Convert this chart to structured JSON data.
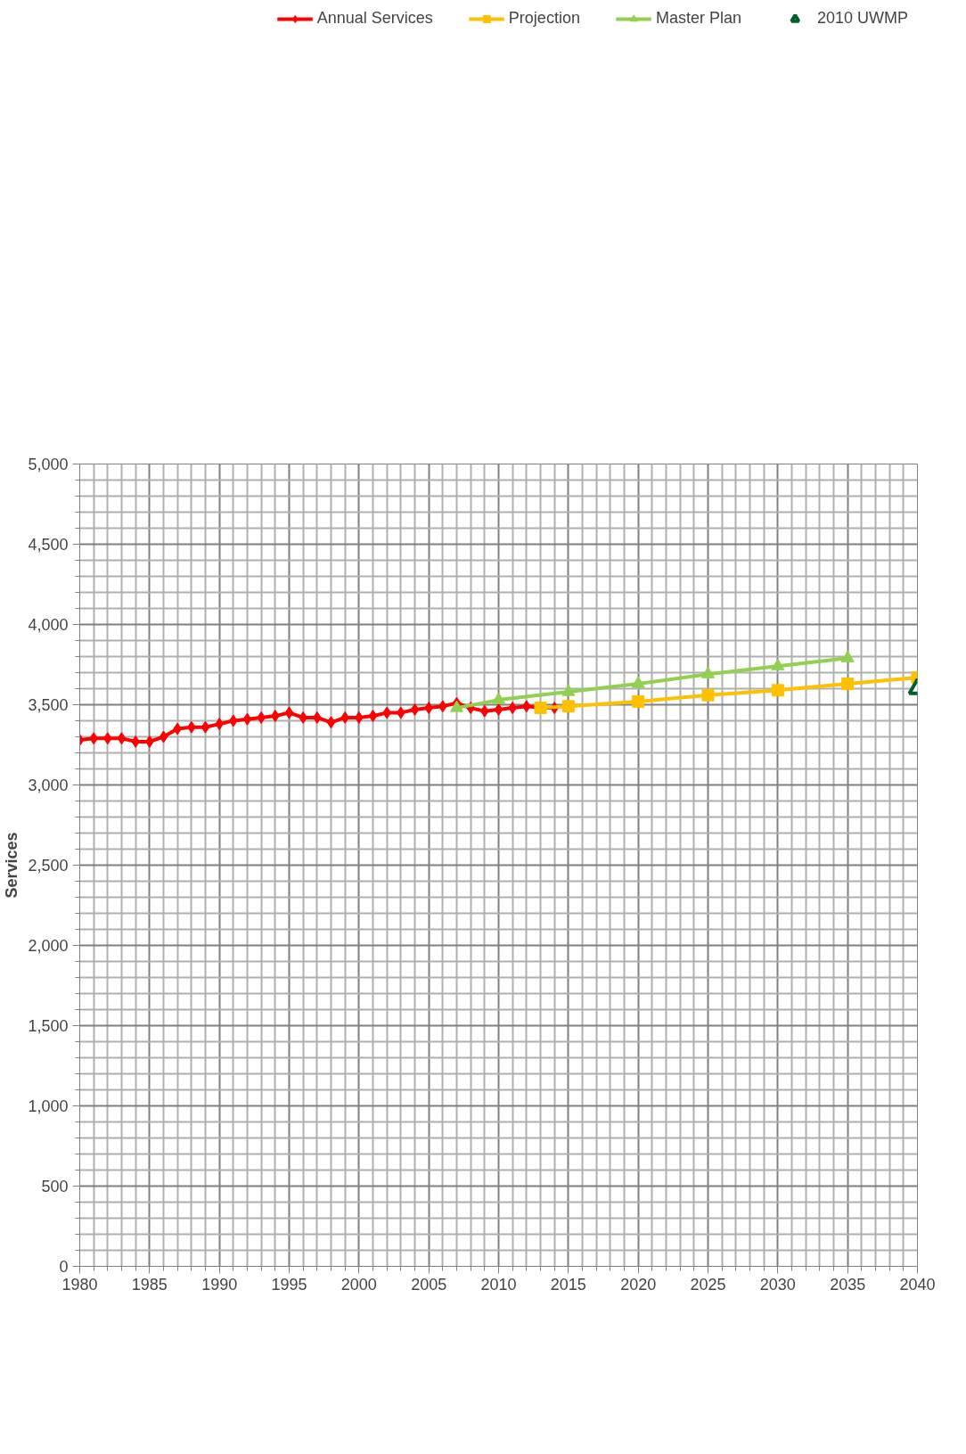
{
  "chart_data": {
    "type": "line",
    "ylabel": "Services",
    "xlim": [
      1980,
      2040
    ],
    "ylim": [
      0,
      5000
    ],
    "xticks": [
      1980,
      {
        "value": 1981,
        "label": null
      },
      {
        "value": 1982,
        "label": null
      },
      {
        "value": 1983,
        "label": null
      },
      {
        "value": 1984,
        "label": null
      },
      1985,
      {
        "value": 1986,
        "label": null
      },
      {
        "value": 1987,
        "label": null
      },
      {
        "value": 1988,
        "label": null
      },
      {
        "value": 1989,
        "label": null
      },
      1990,
      {
        "value": 1991,
        "label": null
      },
      {
        "value": 1992,
        "label": null
      },
      {
        "value": 1993,
        "label": null
      },
      {
        "value": 1994,
        "label": null
      },
      1995,
      {
        "value": 1996,
        "label": null
      },
      {
        "value": 1997,
        "label": null
      },
      {
        "value": 1998,
        "label": null
      },
      {
        "value": 1999,
        "label": null
      },
      2000,
      {
        "value": 2001,
        "label": null
      },
      {
        "value": 2002,
        "label": null
      },
      {
        "value": 2003,
        "label": null
      },
      {
        "value": 2004,
        "label": null
      },
      2005,
      {
        "value": 2006,
        "label": null
      },
      {
        "value": 2007,
        "label": null
      },
      {
        "value": 2008,
        "label": null
      },
      {
        "value": 2009,
        "label": null
      },
      2010,
      {
        "value": 2011,
        "label": null
      },
      {
        "value": 2012,
        "label": null
      },
      {
        "value": 2013,
        "label": null
      },
      {
        "value": 2014,
        "label": null
      },
      2015,
      {
        "value": 2016,
        "label": null
      },
      {
        "value": 2017,
        "label": null
      },
      {
        "value": 2018,
        "label": null
      },
      {
        "value": 2019,
        "label": null
      },
      2020,
      {
        "value": 2021,
        "label": null
      },
      {
        "value": 2022,
        "label": null
      },
      {
        "value": 2023,
        "label": null
      },
      {
        "value": 2024,
        "label": null
      },
      2025,
      {
        "value": 2026,
        "label": null
      },
      {
        "value": 2027,
        "label": null
      },
      {
        "value": 2028,
        "label": null
      },
      {
        "value": 2029,
        "label": null
      },
      2030,
      {
        "value": 2031,
        "label": null
      },
      {
        "value": 2032,
        "label": null
      },
      {
        "value": 2033,
        "label": null
      },
      {
        "value": 2034,
        "label": null
      },
      2035,
      {
        "value": 2036,
        "label": null
      },
      {
        "value": 2037,
        "label": null
      },
      {
        "value": 2038,
        "label": null
      },
      {
        "value": 2039,
        "label": null
      },
      2040
    ],
    "yticks": [
      {
        "value": 0,
        "label": "0"
      },
      {
        "value": 100,
        "label": null
      },
      {
        "value": 200,
        "label": null
      },
      {
        "value": 300,
        "label": null
      },
      {
        "value": 400,
        "label": null
      },
      {
        "value": 500,
        "label": "500"
      },
      {
        "value": 600,
        "label": null
      },
      {
        "value": 700,
        "label": null
      },
      {
        "value": 800,
        "label": null
      },
      {
        "value": 900,
        "label": null
      },
      {
        "value": 1000,
        "label": "1,000"
      },
      {
        "value": 1100,
        "label": null
      },
      {
        "value": 1200,
        "label": null
      },
      {
        "value": 1300,
        "label": null
      },
      {
        "value": 1400,
        "label": null
      },
      {
        "value": 1500,
        "label": "1,500"
      },
      {
        "value": 1600,
        "label": null
      },
      {
        "value": 1700,
        "label": null
      },
      {
        "value": 1800,
        "label": null
      },
      {
        "value": 1900,
        "label": null
      },
      {
        "value": 2000,
        "label": "2,000"
      },
      {
        "value": 2100,
        "label": null
      },
      {
        "value": 2200,
        "label": null
      },
      {
        "value": 2300,
        "label": null
      },
      {
        "value": 2400,
        "label": null
      },
      {
        "value": 2500,
        "label": "2,500"
      },
      {
        "value": 2600,
        "label": null
      },
      {
        "value": 2700,
        "label": null
      },
      {
        "value": 2800,
        "label": null
      },
      {
        "value": 2900,
        "label": null
      },
      {
        "value": 3000,
        "label": "3,000"
      },
      {
        "value": 3100,
        "label": null
      },
      {
        "value": 3200,
        "label": null
      },
      {
        "value": 3300,
        "label": null
      },
      {
        "value": 3400,
        "label": null
      },
      {
        "value": 3500,
        "label": "3,500"
      },
      {
        "value": 3600,
        "label": null
      },
      {
        "value": 3700,
        "label": null
      },
      {
        "value": 3800,
        "label": null
      },
      {
        "value": 3900,
        "label": null
      },
      {
        "value": 4000,
        "label": "4,000"
      },
      {
        "value": 4100,
        "label": null
      },
      {
        "value": 4200,
        "label": null
      },
      {
        "value": 4300,
        "label": null
      },
      {
        "value": 4400,
        "label": null
      },
      {
        "value": 4500,
        "label": "4,500"
      },
      {
        "value": 4600,
        "label": null
      },
      {
        "value": 4700,
        "label": null
      },
      {
        "value": 4800,
        "label": null
      },
      {
        "value": 4900,
        "label": null
      },
      {
        "value": 5000,
        "label": "5,000"
      }
    ],
    "grid": true,
    "legend": "top",
    "series": [
      {
        "name": "Annual Services",
        "color": "#ff0000",
        "marker": "diamond",
        "x": [
          1980,
          1981,
          1982,
          1983,
          1984,
          1985,
          1986,
          1987,
          1988,
          1989,
          1990,
          1991,
          1992,
          1993,
          1994,
          1995,
          1996,
          1997,
          1998,
          1999,
          2000,
          2001,
          2002,
          2003,
          2004,
          2005,
          2006,
          2007,
          2008,
          2009,
          2010,
          2011,
          2012,
          2013,
          2014
        ],
        "values": [
          3280,
          3290,
          3290,
          3290,
          3270,
          3270,
          3300,
          3350,
          3360,
          3360,
          3380,
          3400,
          3410,
          3420,
          3430,
          3450,
          3420,
          3420,
          3390,
          3420,
          3420,
          3430,
          3450,
          3450,
          3470,
          3480,
          3490,
          3510,
          3480,
          3460,
          3470,
          3480,
          3490,
          3480,
          3480
        ]
      },
      {
        "name": "Projection",
        "color": "#ffc000",
        "marker": "square",
        "x": [
          2013,
          2015,
          2020,
          2025,
          2030,
          2035,
          2040
        ],
        "values": [
          3480,
          3490,
          3520,
          3560,
          3590,
          3630,
          3670
        ]
      },
      {
        "name": "Master Plan",
        "color": "#92d050",
        "marker": "triangle",
        "x": [
          2007,
          2010,
          2015,
          2020,
          2025,
          2030,
          2035
        ],
        "values": [
          3480,
          3530,
          3580,
          3630,
          3690,
          3740,
          3790
        ]
      },
      {
        "name": "2010 UWMP",
        "type": "scatter",
        "color": "#00602b",
        "marker": "triangle",
        "x": [
          2040
        ],
        "values": [
          3600
        ]
      }
    ]
  }
}
